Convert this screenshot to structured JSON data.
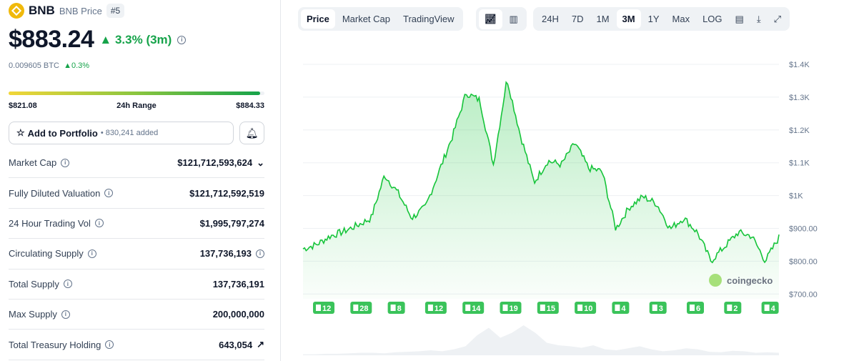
{
  "coin": {
    "symbol": "BNB",
    "name": "BNB Price",
    "rank": "#5",
    "price": "$883.24",
    "change": "3.3% (3m)",
    "btc_price": "0.009605 BTC",
    "btc_change": "0.3%"
  },
  "range": {
    "low": "$821.08",
    "label": "24h Range",
    "high": "$884.33",
    "position_fraction": 0.983
  },
  "portfolio": {
    "label": "Add to Portfolio",
    "count": "830,241 added"
  },
  "stats": [
    {
      "label": "Market Cap",
      "value": "$121,712,593,624"
    },
    {
      "label": "Fully Diluted Valuation",
      "value": "$121,712,592,519"
    },
    {
      "label": "24 Hour Trading Vol",
      "value": "$1,995,797,274"
    },
    {
      "label": "Circulating Supply",
      "value": "137,736,193"
    },
    {
      "label": "Total Supply",
      "value": "137,736,191"
    },
    {
      "label": "Max Supply",
      "value": "200,000,000"
    },
    {
      "label": "Total Treasury Holding",
      "value": "643,054"
    }
  ],
  "toolbar": {
    "tabs": [
      "Price",
      "Market Cap",
      "TradingView"
    ],
    "ranges": [
      "24H",
      "7D",
      "1M",
      "3M",
      "1Y",
      "Max",
      "LOG"
    ],
    "active_tab": "Price",
    "active_range": "3M"
  },
  "watermark": "coingecko",
  "colors": {
    "up": "#16a34a",
    "line": "#16c43a",
    "badge": "#3ac35a"
  },
  "chart_data": {
    "type": "area",
    "yticks": [
      "$1.4K",
      "$1.3K",
      "$1.2K",
      "$1.1K",
      "$1K",
      "$900.00",
      "$800.00",
      "$700.00"
    ],
    "ylim": [
      700,
      1400
    ],
    "price": [
      837,
      850,
      876,
      890,
      909,
      930,
      1062,
      1007,
      931,
      964,
      1073,
      1181,
      1312,
      1290,
      1094,
      1356,
      1181,
      1040,
      1105,
      1094,
      1160,
      1083,
      1073,
      898,
      964,
      996,
      975,
      898,
      931,
      887,
      800,
      844,
      887,
      876,
      800,
      872
    ],
    "news_counts": [
      12,
      28,
      8,
      12,
      14,
      19,
      15,
      10,
      4,
      3,
      6,
      2,
      4
    ],
    "volume_relative": [
      2,
      2,
      3,
      3,
      4,
      5,
      5,
      4,
      6,
      7,
      8,
      10,
      8,
      12,
      18,
      40,
      55,
      35,
      45,
      60,
      45,
      25,
      20,
      18,
      15,
      20,
      12,
      10,
      14,
      18,
      12,
      8,
      10,
      14,
      12,
      7,
      6,
      9,
      8,
      5,
      6,
      5
    ]
  }
}
